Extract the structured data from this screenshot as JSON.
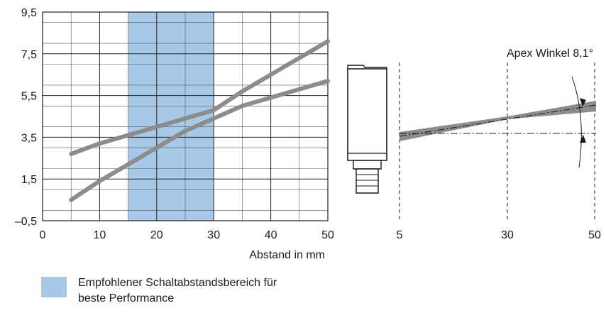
{
  "chart_data": [
    {
      "type": "line",
      "xlabel": "Abstand in mm",
      "ylabel": "",
      "xlim": [
        0,
        50
      ],
      "ylim": [
        -0.5,
        9.5
      ],
      "x_ticks": [
        "0",
        "10",
        "20",
        "30",
        "40",
        "50"
      ],
      "y_ticks": [
        "9,5",
        "7,5",
        "5,5",
        "3,5",
        "1,5",
        "–0,5"
      ],
      "x_ticks_num": [
        0,
        10,
        20,
        30,
        40,
        50
      ],
      "y_ticks_num": [
        9.5,
        7.5,
        5.5,
        3.5,
        1.5,
        -0.5
      ],
      "grid": true,
      "highlight_range": [
        15,
        30
      ],
      "series": [
        {
          "x": [
            5,
            10,
            15,
            20,
            25,
            30,
            35,
            40,
            45,
            50
          ],
          "values": [
            0.5,
            1.4,
            2.2,
            3.0,
            3.8,
            4.4,
            5.0,
            5.4,
            5.8,
            6.2
          ]
        },
        {
          "x": [
            5,
            10,
            15,
            20,
            25,
            30,
            35,
            40,
            45,
            50
          ],
          "values": [
            2.7,
            3.2,
            3.6,
            4.0,
            4.4,
            4.8,
            5.7,
            6.5,
            7.3,
            8.1
          ]
        }
      ],
      "colors": {
        "line": "#8c8c8c",
        "highlight": "#a8c8e8",
        "grid": "#333333"
      }
    },
    {
      "type": "line",
      "title": "Apex Winkel 8,1°",
      "x_ticks": [
        "5",
        "30",
        "50"
      ],
      "x_ticks_num": [
        5,
        30,
        50
      ],
      "angle_deg": 8.1
    }
  ],
  "legend": {
    "text": "Empfohlener Schaltabstandsbereich für beste Performance"
  }
}
